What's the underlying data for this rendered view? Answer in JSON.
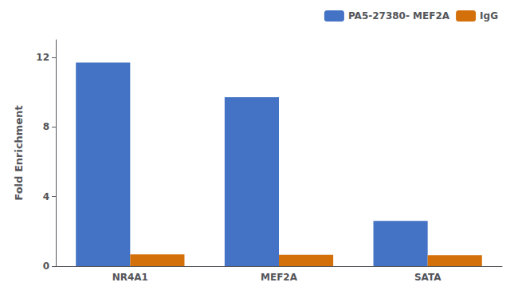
{
  "chart_data": {
    "type": "bar",
    "categories": [
      "NR4A1",
      "MEF2A",
      "SATA"
    ],
    "series": [
      {
        "name": "PA5-27380- MEF2A",
        "color": "#4472C4",
        "values": [
          11.7,
          9.7,
          2.6
        ]
      },
      {
        "name": "IgG",
        "color": "#D4700A",
        "values": [
          0.68,
          0.65,
          0.63
        ]
      }
    ],
    "ylabel": "Fold Enrichment",
    "ylim": [
      0,
      13.0
    ],
    "yticks": [
      0,
      4,
      8,
      12
    ],
    "grid": false,
    "legend": "upper right"
  }
}
